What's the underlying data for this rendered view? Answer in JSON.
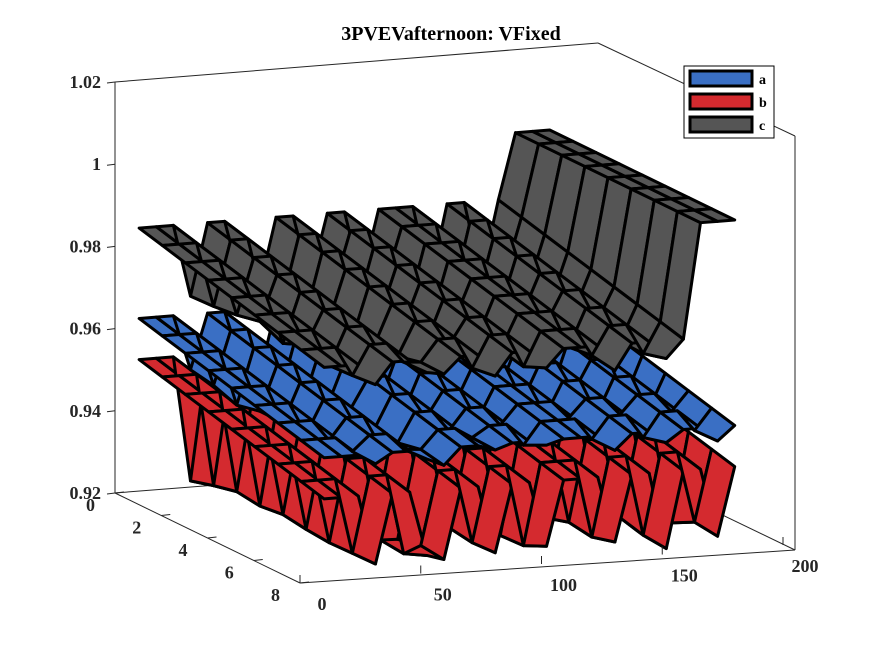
{
  "chart_data": {
    "type": "surface",
    "title": "3PVEVafternoon: VFixed",
    "zlim": [
      0.92,
      1.02
    ],
    "z_ticks": [
      "0.92",
      "0.94",
      "0.96",
      "0.98",
      "1",
      "1.02"
    ],
    "x_ticks": [
      "0",
      "50",
      "100",
      "150",
      "200"
    ],
    "y_ticks": [
      "0",
      "2",
      "4",
      "6",
      "8"
    ],
    "xlim": [
      0,
      200
    ],
    "ylim": [
      0,
      8
    ],
    "grid": false,
    "legend_position": "top-right",
    "series": [
      {
        "name": "a",
        "color": "#3a6fc4",
        "base_level": 0.962,
        "dip_level": 0.945
      },
      {
        "name": "b",
        "color": "#d42a2f",
        "base_level": 0.952,
        "dip_level": 0.921
      },
      {
        "name": "c",
        "color": "#555555",
        "base_level": 0.984,
        "dip_level": 0.965,
        "plateau_level": 1.0
      }
    ]
  },
  "colors": {
    "a": "#3a6fc4",
    "b": "#d42a2f",
    "c": "#555555",
    "edge": "#000000"
  }
}
